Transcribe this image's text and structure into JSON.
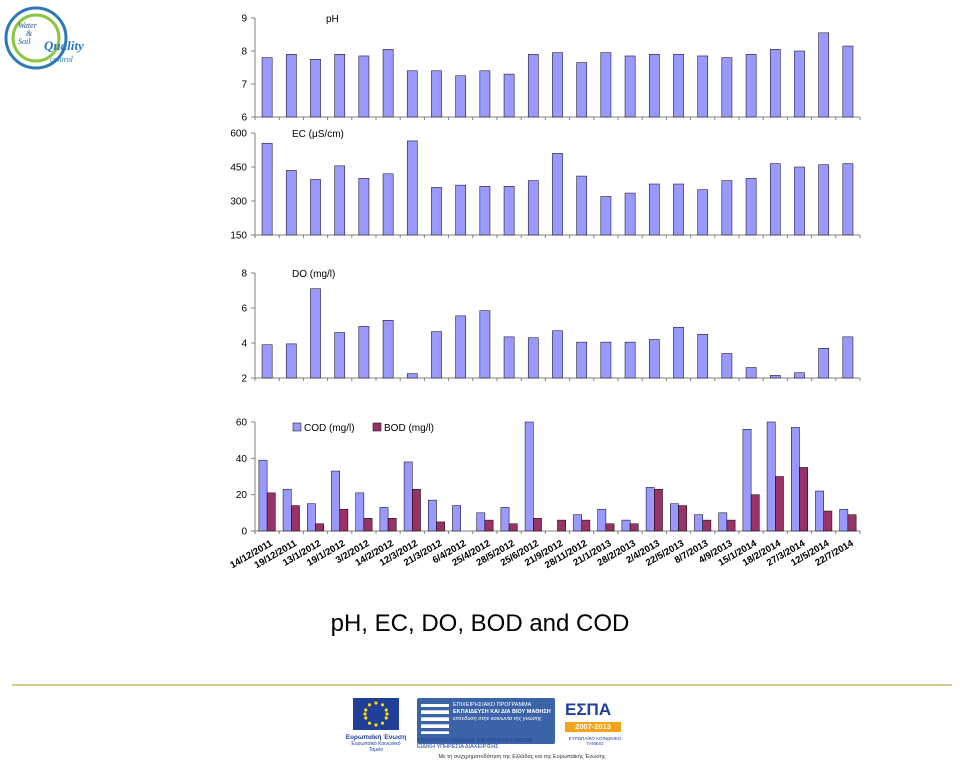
{
  "logo": {
    "line1": "Water",
    "line2": "&",
    "line3": "Soil",
    "word": "Quality",
    "sub": "control"
  },
  "page_title": "pH, EC, DO, BOD and COD",
  "footer": {
    "eu_label": "Ευρωπαϊκή Ένωση",
    "eu_sub": "Ευρωπαϊκό Κοινωνικό Ταμείο",
    "program_line1": "ΕΠΙΧΕΙΡΗΣΙΑΚΟ ΠΡΟΓΡΑΜΜΑ",
    "program_line2": "ΕΚΠΑΙΔΕΥΣΗ ΚΑΙ ΔΙΑ ΒΙΟΥ ΜΑΘΗΣΗ",
    "program_line3": "επένδυση στην κοινωνία της γνώσης",
    "ministry_line1": "ΥΠΟΥΡΓΕΙΟ ΠΑΙΔΕΙΑΣ ΚΑΙ ΘΡΗΣΚΕΥΜΑΤΩΝ",
    "ministry_line2": "ΕΙΔΙΚΗ ΥΠΗΡΕΣΙΑ ΔΙΑΧΕΙΡΙΣΗΣ",
    "espa_word": "ΕΣΠΑ",
    "espa_years": "2007-2013",
    "espa_sub": "ΕΥΡΩΠΑΪΚΟ ΚΟΙΝΩΝΙΚΟ ΤΑΜΕΙΟ",
    "cofund": "Με τη συγχρηματοδότηση της Ελλάδας και της Ευρωπαϊκής Ένωσης"
  },
  "chart_data": [
    {
      "type": "bar",
      "title": "pH",
      "ylim": [
        6,
        9
      ],
      "yticks": [
        6,
        7,
        8,
        9
      ],
      "grid": false,
      "legend": "none",
      "color": "#9999ff",
      "categories": [
        "14/12/2011",
        "19/12/2011",
        "13/1/2012",
        "19/1/2012",
        "3/2/2012",
        "14/2/2012",
        "12/3/2012",
        "21/3/2012",
        "6/4/2012",
        "25/4/2012",
        "28/5/2012",
        "25/6/2012",
        "21/9/2012",
        "28/11/2012",
        "21/1/2013",
        "28/2/2013",
        "2/4/2013",
        "22/5/2013",
        "8/7/2013",
        "4/9/2013",
        "15/1/2014",
        "18/2/2014",
        "27/3/2014",
        "12/5/2014",
        "22/7/2014"
      ],
      "values": [
        7.8,
        7.9,
        7.75,
        7.9,
        7.85,
        8.05,
        7.4,
        7.4,
        7.25,
        7.4,
        7.3,
        7.9,
        7.95,
        7.65,
        7.95,
        7.85,
        7.9,
        7.9,
        7.85,
        7.8,
        7.9,
        8.05,
        8.0,
        8.55,
        8.15
      ]
    },
    {
      "type": "bar",
      "title": "EC (μS/cm)",
      "ylim": [
        150,
        600
      ],
      "yticks": [
        150,
        300,
        450,
        600
      ],
      "grid": false,
      "legend": "none",
      "color": "#9999ff",
      "categories": [
        "14/12/2011",
        "19/12/2011",
        "13/1/2012",
        "19/1/2012",
        "3/2/2012",
        "14/2/2012",
        "12/3/2012",
        "21/3/2012",
        "6/4/2012",
        "25/4/2012",
        "28/5/2012",
        "25/6/2012",
        "21/9/2012",
        "28/11/2012",
        "21/1/2013",
        "28/2/2013",
        "2/4/2013",
        "22/5/2013",
        "8/7/2013",
        "4/9/2013",
        "15/1/2014",
        "18/2/2014",
        "27/3/2014",
        "12/5/2014",
        "22/7/2014"
      ],
      "values": [
        555,
        435,
        395,
        455,
        400,
        420,
        565,
        360,
        370,
        365,
        365,
        390,
        510,
        410,
        320,
        335,
        375,
        375,
        350,
        390,
        400,
        465,
        450,
        460,
        465
      ]
    },
    {
      "type": "bar",
      "title": "DO (mg/l)",
      "ylim": [
        2,
        8
      ],
      "yticks": [
        2,
        4,
        6,
        8
      ],
      "grid": false,
      "legend": "none",
      "color": "#9999ff",
      "categories": [
        "14/12/2011",
        "19/12/2011",
        "13/1/2012",
        "19/1/2012",
        "3/2/2012",
        "14/2/2012",
        "12/3/2012",
        "21/3/2012",
        "6/4/2012",
        "25/4/2012",
        "28/5/2012",
        "25/6/2012",
        "21/9/2012",
        "28/11/2012",
        "21/1/2013",
        "28/2/2013",
        "2/4/2013",
        "22/5/2013",
        "8/7/2013",
        "4/9/2013",
        "15/1/2014",
        "18/2/2014",
        "27/3/2014",
        "12/5/2014",
        "22/7/2014"
      ],
      "values": [
        3.9,
        3.95,
        7.1,
        4.6,
        4.95,
        5.3,
        2.25,
        4.65,
        5.55,
        5.85,
        4.35,
        4.3,
        4.7,
        4.05,
        4.05,
        4.05,
        4.2,
        4.9,
        4.5,
        3.4,
        2.6,
        2.15,
        2.3,
        3.7,
        4.35
      ]
    },
    {
      "type": "bar",
      "title": "",
      "ylim": [
        0,
        60
      ],
      "yticks": [
        0,
        20,
        40,
        60
      ],
      "grid": false,
      "legend": "top-left",
      "categories": [
        "14/12/2011",
        "19/12/2011",
        "13/1/2012",
        "19/1/2012",
        "3/2/2012",
        "14/2/2012",
        "12/3/2012",
        "21/3/2012",
        "6/4/2012",
        "25/4/2012",
        "28/5/2012",
        "25/6/2012",
        "21/9/2012",
        "28/11/2012",
        "21/1/2013",
        "28/2/2013",
        "2/4/2013",
        "22/5/2013",
        "8/7/2013",
        "4/9/2013",
        "15/1/2014",
        "18/2/2014",
        "27/3/2014",
        "12/5/2014",
        "22/7/2014"
      ],
      "series": [
        {
          "name": "COD (mg/l)",
          "color": "#9999ff",
          "values": [
            39,
            23,
            15,
            33,
            21,
            13,
            38,
            17,
            14,
            10,
            13,
            60,
            0,
            9,
            12,
            6,
            24,
            15,
            9,
            10,
            56,
            60,
            57,
            22,
            12
          ]
        },
        {
          "name": "BOD (mg/l)",
          "color": "#993366",
          "values": [
            21,
            14,
            4,
            12,
            7,
            7,
            23,
            5,
            0,
            6,
            4,
            7,
            6,
            6,
            4,
            4,
            23,
            14,
            6,
            6,
            20,
            30,
            35,
            11,
            9
          ]
        }
      ]
    }
  ]
}
